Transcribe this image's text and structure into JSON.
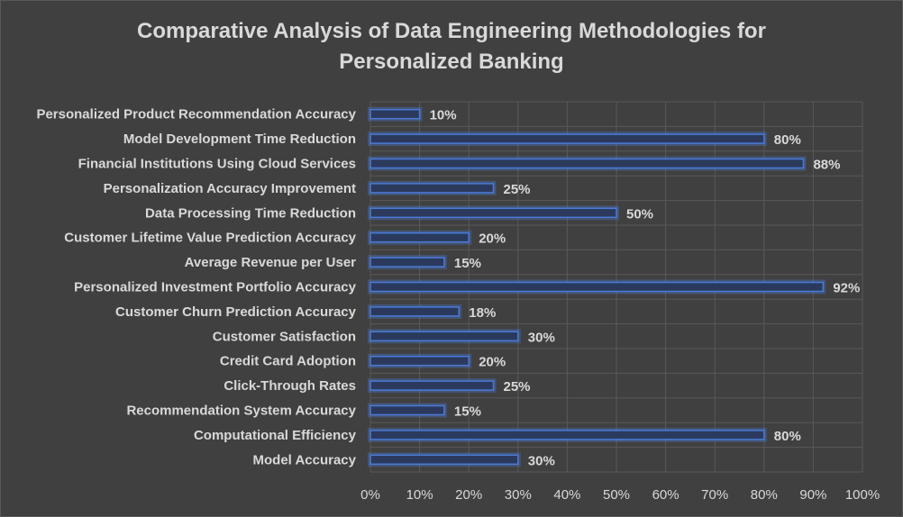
{
  "chart_data": {
    "type": "bar",
    "orientation": "horizontal",
    "title_lines": [
      "Comparative Analysis of Data Engineering Methodologies for",
      "Personalized Banking"
    ],
    "categories": [
      "Personalized Product Recommendation Accuracy",
      "Model Development Time Reduction",
      "Financial Institutions Using Cloud Services",
      "Personalization Accuracy Improvement",
      "Data Processing Time Reduction",
      "Customer Lifetime Value Prediction Accuracy",
      "Average Revenue per User",
      "Personalized Investment Portfolio Accuracy",
      "Customer Churn Prediction Accuracy",
      "Customer Satisfaction",
      "Credit Card Adoption",
      "Click-Through Rates",
      "Recommendation System Accuracy",
      "Computational Efficiency",
      "Model Accuracy"
    ],
    "values": [
      10,
      80,
      88,
      25,
      50,
      20,
      15,
      92,
      18,
      30,
      20,
      25,
      15,
      80,
      30
    ],
    "data_labels": [
      "10%",
      "80%",
      "88%",
      "25%",
      "50%",
      "20%",
      "15%",
      "92%",
      "18%",
      "30%",
      "20%",
      "25%",
      "15%",
      "80%",
      "30%"
    ],
    "xlim": [
      0,
      100
    ],
    "xticks": [
      0,
      10,
      20,
      30,
      40,
      50,
      60,
      70,
      80,
      90,
      100
    ],
    "xtick_labels": [
      "0%",
      "10%",
      "20%",
      "30%",
      "40%",
      "50%",
      "60%",
      "70%",
      "80%",
      "90%",
      "100%"
    ],
    "grid": true,
    "legend": "none",
    "colors": {
      "bar_fill": "#2b3a5c",
      "bar_stroke": "#4a7bd8",
      "grid": "#595959",
      "text": "#d9d9d9",
      "background": "#404040"
    }
  }
}
